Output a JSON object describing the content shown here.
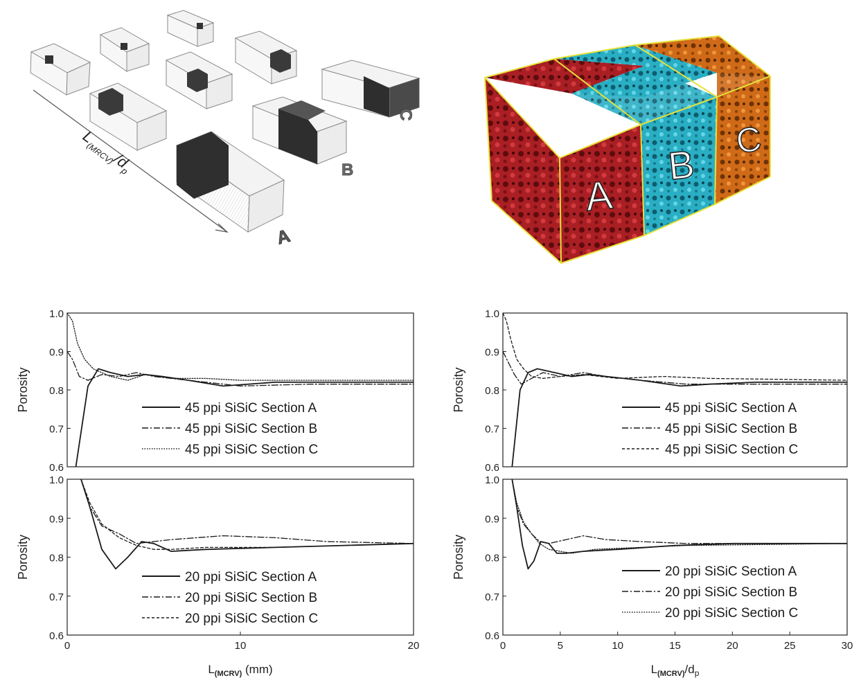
{
  "schematic": {
    "axis_label_main": "L",
    "axis_label_sub": "(MRCV)",
    "axis_label_tail": "/d",
    "axis_label_tail_sub": "p",
    "tag_a": "A",
    "tag_b": "B",
    "tag_c": "C"
  },
  "foam": {
    "label_a": "A",
    "label_b": "B",
    "label_c": "C",
    "colors": {
      "a": "#b8272b",
      "b": "#2db3c8",
      "c": "#d46f1c",
      "frame": "#e9e43c"
    }
  },
  "chart_data": [
    {
      "type": "line",
      "ylabel": "Porosity",
      "xlabel": "",
      "xlim": [
        0,
        20
      ],
      "ylim": [
        0.6,
        1.0
      ],
      "yticks": [
        "1.0",
        "0.9",
        "0.8",
        "0.7",
        "0.6"
      ],
      "xticks": [],
      "series": [
        {
          "name": "45 ppi SiSiC Section A",
          "dash": "solid",
          "x": [
            0.5,
            1.2,
            1.8,
            2.5,
            3.5,
            4.5,
            5.5,
            7,
            9,
            12,
            16,
            20
          ],
          "y": [
            0.6,
            0.81,
            0.855,
            0.845,
            0.835,
            0.84,
            0.835,
            0.825,
            0.81,
            0.82,
            0.82,
            0.82
          ]
        },
        {
          "name": "45 ppi SiSiC Section B",
          "dash": "dashdot",
          "x": [
            0,
            0.3,
            0.7,
            1.2,
            2,
            3,
            4,
            5,
            6,
            8,
            10,
            14,
            20
          ],
          "y": [
            0.9,
            0.88,
            0.835,
            0.825,
            0.84,
            0.835,
            0.845,
            0.835,
            0.83,
            0.82,
            0.81,
            0.815,
            0.815
          ]
        },
        {
          "name": "45 ppi SiSiC Section C",
          "dash": "dotted",
          "x": [
            0,
            0.3,
            0.6,
            1,
            1.5,
            2.5,
            3.5,
            4.5,
            6,
            8,
            10,
            14,
            20
          ],
          "y": [
            1.0,
            0.98,
            0.92,
            0.88,
            0.855,
            0.835,
            0.825,
            0.84,
            0.83,
            0.83,
            0.825,
            0.825,
            0.825
          ]
        }
      ]
    },
    {
      "type": "line",
      "ylabel": "Porosity",
      "xlabel": "L(MCRV) (mm)",
      "xlabel_main": "L",
      "xlabel_sub": "(MCRV)",
      "xlabel_tail": " (mm)",
      "xlim": [
        0,
        20
      ],
      "ylim": [
        0.6,
        1.0
      ],
      "yticks": [
        "1.0",
        "0.9",
        "0.8",
        "0.7",
        "0.6"
      ],
      "xticks": [
        "0",
        "10",
        "20"
      ],
      "series": [
        {
          "name": "20 ppi SiSiC Section A",
          "dash": "solid",
          "x": [
            0.8,
            1.3,
            2,
            2.8,
            3.5,
            4.3,
            5,
            6,
            8,
            12,
            16,
            20
          ],
          "y": [
            1.0,
            0.93,
            0.82,
            0.77,
            0.8,
            0.84,
            0.835,
            0.815,
            0.82,
            0.825,
            0.83,
            0.835
          ]
        },
        {
          "name": "20 ppi SiSiC Section B",
          "dash": "dashdot",
          "x": [
            0.8,
            1.3,
            2,
            3,
            4,
            5,
            6,
            9,
            12,
            15,
            20
          ],
          "y": [
            1.0,
            0.93,
            0.88,
            0.86,
            0.835,
            0.84,
            0.845,
            0.855,
            0.85,
            0.84,
            0.835
          ]
        },
        {
          "name": "20 ppi SiSiC Section C",
          "dash": "dashed",
          "x": [
            0.8,
            1.3,
            2,
            3,
            4,
            5,
            6,
            8,
            12,
            20
          ],
          "y": [
            1.0,
            0.94,
            0.885,
            0.85,
            0.83,
            0.82,
            0.82,
            0.825,
            0.825,
            0.835
          ]
        }
      ]
    },
    {
      "type": "line",
      "ylabel": "Porosity",
      "xlabel": "",
      "xlim": [
        0,
        30
      ],
      "ylim": [
        0.6,
        1.0
      ],
      "yticks": [
        "1.0",
        "0.9",
        "0.8",
        "0.7",
        "0.6"
      ],
      "xticks": [],
      "series": [
        {
          "name": "45 ppi SiSiC Section A",
          "dash": "solid",
          "x": [
            0.8,
            1.5,
            2.2,
            3,
            4.5,
            6,
            7.5,
            9,
            12,
            15.5,
            18,
            22,
            30
          ],
          "y": [
            0.6,
            0.8,
            0.845,
            0.855,
            0.845,
            0.835,
            0.84,
            0.835,
            0.825,
            0.81,
            0.815,
            0.82,
            0.82
          ]
        },
        {
          "name": "45 ppi SiSiC Section B",
          "dash": "dashdot",
          "x": [
            0,
            0.5,
            1,
            1.6,
            2.5,
            3.5,
            5,
            7,
            9,
            12,
            16,
            20,
            30
          ],
          "y": [
            0.9,
            0.87,
            0.84,
            0.815,
            0.83,
            0.845,
            0.835,
            0.845,
            0.835,
            0.825,
            0.815,
            0.815,
            0.815
          ]
        },
        {
          "name": "45 ppi SiSiC Section C",
          "dash": "dashed",
          "x": [
            0,
            0.3,
            0.7,
            1.2,
            1.8,
            2.5,
            3.5,
            5,
            7,
            10,
            14,
            18,
            30
          ],
          "y": [
            1.0,
            0.98,
            0.93,
            0.88,
            0.855,
            0.835,
            0.83,
            0.835,
            0.84,
            0.83,
            0.835,
            0.83,
            0.825
          ]
        }
      ]
    },
    {
      "type": "line",
      "ylabel": "Porosity",
      "xlabel": "L(MCRV)/dp",
      "xlabel_main": "L",
      "xlabel_sub": "(MCRV)",
      "xlabel_tail": "/d",
      "xlabel_tail_sub": "p",
      "xlim": [
        0,
        30
      ],
      "ylim": [
        0.6,
        1.0
      ],
      "yticks": [
        "1.0",
        "0.9",
        "0.8",
        "0.7",
        "0.6"
      ],
      "xticks": [
        "0",
        "5",
        "10",
        "15",
        "20",
        "25",
        "30"
      ],
      "series": [
        {
          "name": "20 ppi SiSiC Section A",
          "dash": "solid",
          "x": [
            0.8,
            1.2,
            1.7,
            2.2,
            2.7,
            3.3,
            4,
            4.7,
            5.5,
            7,
            10,
            15,
            20,
            30
          ],
          "y": [
            1.0,
            0.93,
            0.83,
            0.77,
            0.79,
            0.84,
            0.835,
            0.81,
            0.81,
            0.815,
            0.82,
            0.83,
            0.835,
            0.835
          ]
        },
        {
          "name": "20 ppi SiSiC Section B",
          "dash": "dashdot",
          "x": [
            0.8,
            1.2,
            1.8,
            2.5,
            3.2,
            4,
            5.5,
            7,
            9,
            12,
            16,
            30
          ],
          "y": [
            1.0,
            0.93,
            0.885,
            0.86,
            0.84,
            0.835,
            0.845,
            0.855,
            0.845,
            0.84,
            0.835,
            0.835
          ]
        },
        {
          "name": "20 ppi SiSiC Section C",
          "dash": "dotted",
          "x": [
            0.8,
            1.2,
            1.8,
            2.5,
            3.2,
            4,
            5,
            6,
            8,
            12,
            16,
            30
          ],
          "y": [
            1.0,
            0.94,
            0.89,
            0.86,
            0.835,
            0.82,
            0.815,
            0.81,
            0.82,
            0.825,
            0.83,
            0.835
          ]
        }
      ]
    }
  ]
}
